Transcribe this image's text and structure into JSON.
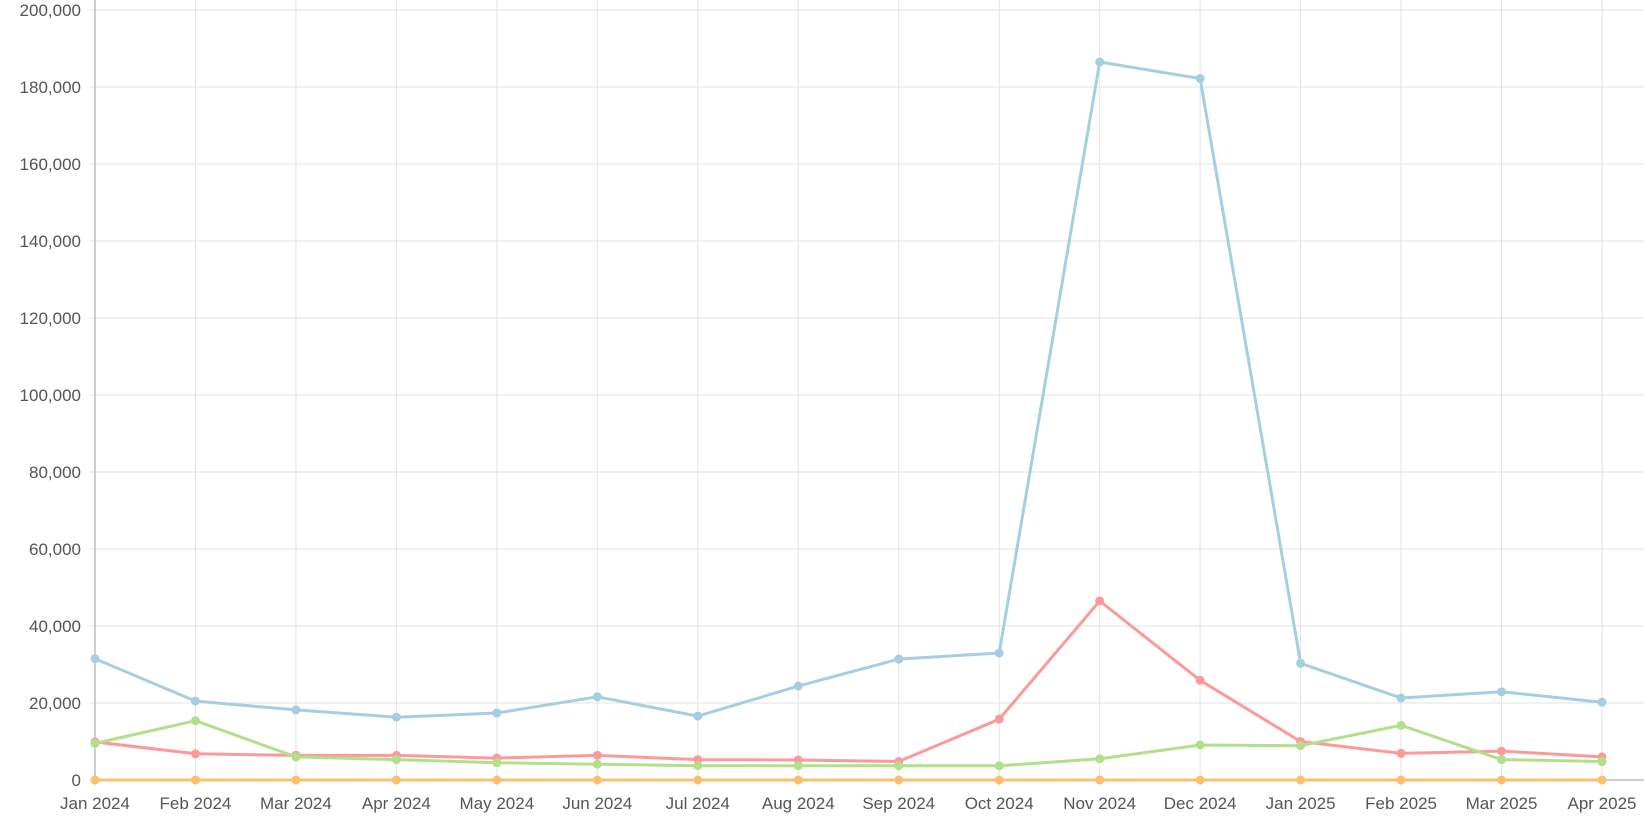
{
  "chart_data": {
    "type": "line",
    "title": "",
    "xlabel": "",
    "ylabel": "",
    "categories": [
      "Jan 2024",
      "Feb 2024",
      "Mar 2024",
      "Apr 2024",
      "May 2024",
      "Jun 2024",
      "Jul 2024",
      "Aug 2024",
      "Sep 2024",
      "Oct 2024",
      "Nov 2024",
      "Dec 2024",
      "Jan 2025",
      "Feb 2025",
      "Mar 2025",
      "Apr 2025"
    ],
    "ylim": [
      0,
      200000
    ],
    "yticks": [
      0,
      20000,
      40000,
      60000,
      80000,
      100000,
      120000,
      140000,
      160000,
      180000,
      200000
    ],
    "ytick_labels": [
      "0",
      "20,000",
      "40,000",
      "60,000",
      "80,000",
      "100,000",
      "120,000",
      "140,000",
      "160,000",
      "180,000",
      "200,000"
    ],
    "grid": true,
    "legend": "none",
    "series": [
      {
        "color": "#a6cee3",
        "values": [
          31500,
          20500,
          18200,
          16300,
          17400,
          21600,
          16600,
          24400,
          31400,
          33000,
          186500,
          182200,
          30300,
          21300,
          22900,
          20200
        ]
      },
      {
        "color": "#fb9a99",
        "values": [
          9900,
          6800,
          6400,
          6400,
          5700,
          6400,
          5300,
          5200,
          4800,
          15800,
          46500,
          25900,
          10000,
          6900,
          7500,
          6000
        ]
      },
      {
        "color": "#b2df8a",
        "values": [
          9500,
          15400,
          6000,
          5300,
          4500,
          4100,
          3700,
          3700,
          3700,
          3700,
          5500,
          9100,
          8900,
          14200,
          5300,
          4800
        ]
      },
      {
        "color": "#fdbf6f",
        "values": [
          0,
          0,
          0,
          0,
          0,
          0,
          0,
          0,
          0,
          0,
          0,
          0,
          0,
          0,
          0,
          0
        ]
      }
    ]
  }
}
